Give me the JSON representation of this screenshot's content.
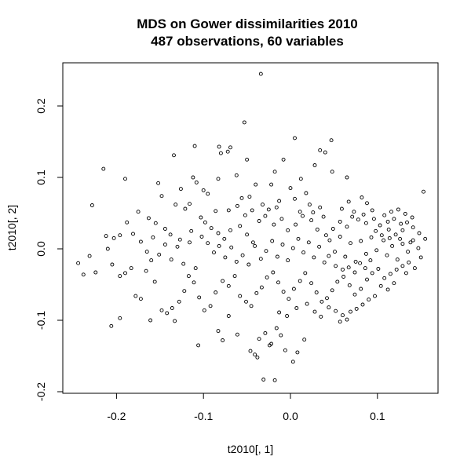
{
  "chart_data": {
    "type": "scatter",
    "title": "MDS on Gower dissimilarities 2010",
    "subtitle": "487 observations, 60 variables",
    "xlabel": "t2010[, 1]",
    "ylabel": "t2010[, 2]",
    "xlim": [
      -0.25,
      0.16
    ],
    "ylim": [
      -0.2,
      0.25
    ],
    "xticks": [
      -0.2,
      -0.1,
      0.0,
      0.1
    ],
    "xtick_labels": [
      "-0.2",
      "-0.1",
      "0.0",
      "0.1"
    ],
    "yticks": [
      -0.2,
      -0.1,
      0.0,
      0.1,
      0.2
    ],
    "ytick_labels": [
      "-0.2",
      "-0.1",
      "0.0",
      "0.1",
      "0.2"
    ],
    "marker": "open-circle",
    "grid": false,
    "points": [
      [
        -0.034,
        0.245
      ],
      [
        -0.053,
        0.177
      ],
      [
        0.005,
        0.155
      ],
      [
        0.047,
        0.152
      ],
      [
        0.034,
        0.138
      ],
      [
        -0.082,
        0.143
      ],
      [
        -0.069,
        0.142
      ],
      [
        -0.072,
        0.136
      ],
      [
        -0.08,
        0.134
      ],
      [
        -0.11,
        0.144
      ],
      [
        -0.134,
        0.131
      ],
      [
        -0.215,
        0.112
      ],
      [
        -0.05,
        0.125
      ],
      [
        -0.008,
        0.125
      ],
      [
        0.04,
        0.135
      ],
      [
        0.028,
        0.117
      ],
      [
        0.065,
        0.1
      ],
      [
        0.048,
        0.108
      ],
      [
        -0.19,
        0.098
      ],
      [
        -0.152,
        0.092
      ],
      [
        -0.126,
        0.084
      ],
      [
        -0.112,
        0.1
      ],
      [
        -0.108,
        0.093
      ],
      [
        -0.083,
        0.098
      ],
      [
        -0.062,
        0.103
      ],
      [
        -0.1,
        0.082
      ],
      [
        -0.095,
        0.077
      ],
      [
        -0.04,
        0.09
      ],
      [
        -0.018,
        0.108
      ],
      [
        -0.022,
        0.09
      ],
      [
        0.012,
        0.098
      ],
      [
        0.0,
        0.085
      ],
      [
        0.018,
        0.078
      ],
      [
        -0.148,
        0.074
      ],
      [
        -0.132,
        0.062
      ],
      [
        -0.121,
        0.056
      ],
      [
        -0.116,
        0.063
      ],
      [
        -0.228,
        0.061
      ],
      [
        -0.175,
        0.052
      ],
      [
        -0.163,
        0.043
      ],
      [
        -0.155,
        0.036
      ],
      [
        -0.086,
        0.053
      ],
      [
        -0.071,
        0.054
      ],
      [
        -0.061,
        0.06
      ],
      [
        -0.056,
        0.071
      ],
      [
        -0.047,
        0.073
      ],
      [
        -0.032,
        0.062
      ],
      [
        -0.025,
        0.055
      ],
      [
        -0.013,
        0.067
      ],
      [
        0.005,
        0.07
      ],
      [
        0.022,
        0.062
      ],
      [
        0.034,
        0.058
      ],
      [
        0.067,
        0.066
      ],
      [
        0.082,
        0.072
      ],
      [
        0.088,
        0.064
      ],
      [
        0.059,
        0.056
      ],
      [
        0.073,
        0.052
      ],
      [
        0.094,
        0.054
      ],
      [
        0.108,
        0.047
      ],
      [
        0.116,
        0.052
      ],
      [
        0.124,
        0.055
      ],
      [
        0.132,
        0.049
      ],
      [
        0.14,
        0.044
      ],
      [
        0.153,
        0.08
      ],
      [
        -0.188,
        0.037
      ],
      [
        -0.181,
        0.021
      ],
      [
        -0.203,
        0.015
      ],
      [
        -0.212,
        0.018
      ],
      [
        -0.196,
        0.019
      ],
      [
        -0.144,
        0.028
      ],
      [
        -0.138,
        0.02
      ],
      [
        -0.127,
        0.013
      ],
      [
        -0.114,
        0.025
      ],
      [
        -0.103,
        0.044
      ],
      [
        -0.098,
        0.037
      ],
      [
        -0.091,
        0.029
      ],
      [
        -0.083,
        0.022
      ],
      [
        -0.076,
        0.014
      ],
      [
        -0.069,
        0.026
      ],
      [
        -0.058,
        0.032
      ],
      [
        -0.05,
        0.02
      ],
      [
        -0.043,
        0.009
      ],
      [
        -0.036,
        0.039
      ],
      [
        -0.029,
        0.046
      ],
      [
        -0.019,
        0.034
      ],
      [
        -0.01,
        0.042
      ],
      [
        -0.003,
        0.026
      ],
      [
        0.006,
        0.034
      ],
      [
        0.014,
        0.046
      ],
      [
        0.024,
        0.04
      ],
      [
        0.031,
        0.027
      ],
      [
        0.041,
        0.019
      ],
      [
        0.049,
        0.028
      ],
      [
        0.057,
        0.038
      ],
      [
        0.065,
        0.031
      ],
      [
        0.078,
        0.041
      ],
      [
        0.087,
        0.036
      ],
      [
        0.096,
        0.042
      ],
      [
        0.103,
        0.033
      ],
      [
        0.112,
        0.038
      ],
      [
        0.119,
        0.042
      ],
      [
        0.127,
        0.035
      ],
      [
        0.134,
        0.037
      ],
      [
        0.141,
        0.03
      ],
      [
        0.148,
        0.022
      ],
      [
        0.155,
        0.014
      ],
      [
        0.129,
        0.026
      ],
      [
        0.121,
        0.02
      ],
      [
        0.113,
        0.027
      ],
      [
        -0.244,
        -0.02
      ],
      [
        -0.238,
        -0.036
      ],
      [
        -0.231,
        -0.01
      ],
      [
        -0.224,
        -0.033
      ],
      [
        -0.21,
        0.0
      ],
      [
        -0.205,
        -0.022
      ],
      [
        -0.196,
        -0.038
      ],
      [
        -0.19,
        -0.034
      ],
      [
        -0.183,
        -0.027
      ],
      [
        -0.178,
        -0.066
      ],
      [
        -0.172,
        -0.07
      ],
      [
        -0.166,
        -0.031
      ],
      [
        -0.16,
        -0.016
      ],
      [
        -0.156,
        -0.046
      ],
      [
        -0.148,
        -0.086
      ],
      [
        -0.142,
        -0.09
      ],
      [
        -0.136,
        -0.083
      ],
      [
        -0.128,
        -0.074
      ],
      [
        -0.122,
        -0.059
      ],
      [
        -0.117,
        -0.038
      ],
      [
        -0.111,
        -0.047
      ],
      [
        -0.105,
        -0.068
      ],
      [
        -0.099,
        -0.086
      ],
      [
        -0.092,
        -0.08
      ],
      [
        -0.086,
        -0.061
      ],
      [
        -0.078,
        -0.045
      ],
      [
        -0.071,
        -0.052
      ],
      [
        -0.064,
        -0.038
      ],
      [
        -0.058,
        -0.066
      ],
      [
        -0.051,
        -0.074
      ],
      [
        -0.045,
        -0.08
      ],
      [
        -0.039,
        -0.062
      ],
      [
        -0.033,
        -0.054
      ],
      [
        -0.027,
        -0.04
      ],
      [
        -0.02,
        -0.033
      ],
      [
        -0.014,
        -0.047
      ],
      [
        -0.008,
        -0.06
      ],
      [
        -0.002,
        -0.07
      ],
      [
        0.004,
        -0.056
      ],
      [
        0.011,
        -0.045
      ],
      [
        0.017,
        -0.034
      ],
      [
        0.024,
        -0.048
      ],
      [
        0.03,
        -0.061
      ],
      [
        0.036,
        -0.074
      ],
      [
        0.042,
        -0.069
      ],
      [
        0.048,
        -0.058
      ],
      [
        0.054,
        -0.046
      ],
      [
        0.061,
        -0.039
      ],
      [
        0.068,
        -0.051
      ],
      [
        0.074,
        -0.064
      ],
      [
        0.081,
        -0.056
      ],
      [
        0.088,
        -0.043
      ],
      [
        0.094,
        -0.034
      ],
      [
        0.101,
        -0.028
      ],
      [
        0.108,
        -0.041
      ],
      [
        0.115,
        -0.035
      ],
      [
        0.122,
        -0.029
      ],
      [
        0.129,
        -0.024
      ],
      [
        0.136,
        -0.019
      ],
      [
        0.143,
        -0.027
      ],
      [
        0.15,
        -0.012
      ],
      [
        0.133,
        -0.034
      ],
      [
        0.119,
        -0.048
      ],
      [
        0.112,
        -0.057
      ],
      [
        0.104,
        -0.052
      ],
      [
        0.097,
        -0.066
      ],
      [
        0.09,
        -0.071
      ],
      [
        0.083,
        -0.078
      ],
      [
        0.076,
        -0.084
      ],
      [
        0.069,
        -0.088
      ],
      [
        0.06,
        -0.093
      ],
      [
        0.052,
        -0.087
      ],
      [
        0.044,
        -0.082
      ],
      [
        -0.206,
        -0.108
      ],
      [
        -0.196,
        -0.097
      ],
      [
        -0.161,
        -0.1
      ],
      [
        -0.133,
        -0.101
      ],
      [
        -0.106,
        -0.135
      ],
      [
        -0.083,
        -0.115
      ],
      [
        -0.078,
        -0.128
      ],
      [
        -0.071,
        -0.094
      ],
      [
        -0.061,
        -0.12
      ],
      [
        -0.046,
        -0.143
      ],
      [
        -0.041,
        -0.148
      ],
      [
        -0.036,
        -0.126
      ],
      [
        -0.029,
        -0.118
      ],
      [
        -0.022,
        -0.133
      ],
      [
        -0.016,
        -0.111
      ],
      [
        -0.011,
        -0.121
      ],
      [
        -0.006,
        -0.142
      ],
      [
        0.003,
        -0.158
      ],
      [
        0.008,
        -0.145
      ],
      [
        -0.018,
        -0.184
      ],
      [
        -0.031,
        -0.183
      ],
      [
        -0.038,
        -0.152
      ],
      [
        -0.024,
        -0.135
      ],
      [
        0.016,
        -0.127
      ],
      [
        -0.095,
        0.008
      ],
      [
        -0.088,
        -0.005
      ],
      [
        -0.082,
        0.004
      ],
      [
        -0.075,
        -0.012
      ],
      [
        -0.068,
        0.002
      ],
      [
        -0.062,
        -0.018
      ],
      [
        -0.055,
        -0.009
      ],
      [
        -0.048,
        -0.022
      ],
      [
        -0.041,
        0.004
      ],
      [
        -0.034,
        -0.014
      ],
      [
        -0.028,
        -0.003
      ],
      [
        -0.021,
        0.011
      ],
      [
        -0.015,
        -0.011
      ],
      [
        -0.009,
        0.006
      ],
      [
        -0.003,
        -0.016
      ],
      [
        0.003,
        0.001
      ],
      [
        0.009,
        0.014
      ],
      [
        0.015,
        -0.005
      ],
      [
        0.021,
        0.009
      ],
      [
        0.027,
        -0.012
      ],
      [
        0.033,
        0.003
      ],
      [
        0.039,
        -0.019
      ],
      [
        0.045,
        0.012
      ],
      [
        0.051,
        -0.004
      ],
      [
        0.057,
        0.017
      ],
      [
        0.063,
        -0.011
      ],
      [
        0.069,
        0.008
      ],
      [
        0.075,
        -0.018
      ],
      [
        0.081,
        0.011
      ],
      [
        0.087,
        -0.007
      ],
      [
        0.093,
        0.016
      ],
      [
        0.099,
        -0.002
      ],
      [
        0.105,
        0.019
      ],
      [
        0.111,
        -0.009
      ],
      [
        0.117,
        0.004
      ],
      [
        0.123,
        -0.015
      ],
      [
        0.129,
        0.007
      ],
      [
        0.135,
        -0.004
      ],
      [
        0.141,
        0.012
      ],
      [
        0.147,
        0.001
      ],
      [
        -0.172,
        0.01
      ],
      [
        -0.165,
        -0.004
      ],
      [
        -0.158,
        0.016
      ],
      [
        -0.151,
        -0.008
      ],
      [
        -0.144,
        0.006
      ],
      [
        -0.137,
        -0.015
      ],
      [
        -0.13,
        0.003
      ],
      [
        -0.123,
        -0.021
      ],
      [
        -0.116,
        0.009
      ],
      [
        -0.109,
        -0.027
      ],
      [
        -0.102,
        0.017
      ],
      [
        -0.052,
        0.047
      ],
      [
        -0.044,
        0.054
      ],
      [
        -0.016,
        0.058
      ],
      [
        0.011,
        0.052
      ],
      [
        0.026,
        0.051
      ],
      [
        0.038,
        0.045
      ],
      [
        0.071,
        0.045
      ],
      [
        0.084,
        0.048
      ],
      [
        0.098,
        0.025
      ],
      [
        0.107,
        0.012
      ],
      [
        0.114,
        0.015
      ],
      [
        0.126,
        0.014
      ],
      [
        0.138,
        0.009
      ],
      [
        0.044,
        -0.01
      ],
      [
        0.052,
        -0.024
      ],
      [
        0.06,
        -0.029
      ],
      [
        0.067,
        -0.026
      ],
      [
        0.074,
        -0.033
      ],
      [
        0.08,
        -0.02
      ],
      [
        0.086,
        -0.027
      ],
      [
        0.092,
        -0.016
      ],
      [
        -0.013,
        -0.089
      ],
      [
        -0.004,
        -0.094
      ],
      [
        0.007,
        -0.083
      ],
      [
        0.019,
        -0.077
      ],
      [
        0.028,
        -0.088
      ],
      [
        0.035,
        -0.095
      ],
      [
        0.057,
        -0.102
      ],
      [
        0.065,
        -0.099
      ]
    ]
  }
}
